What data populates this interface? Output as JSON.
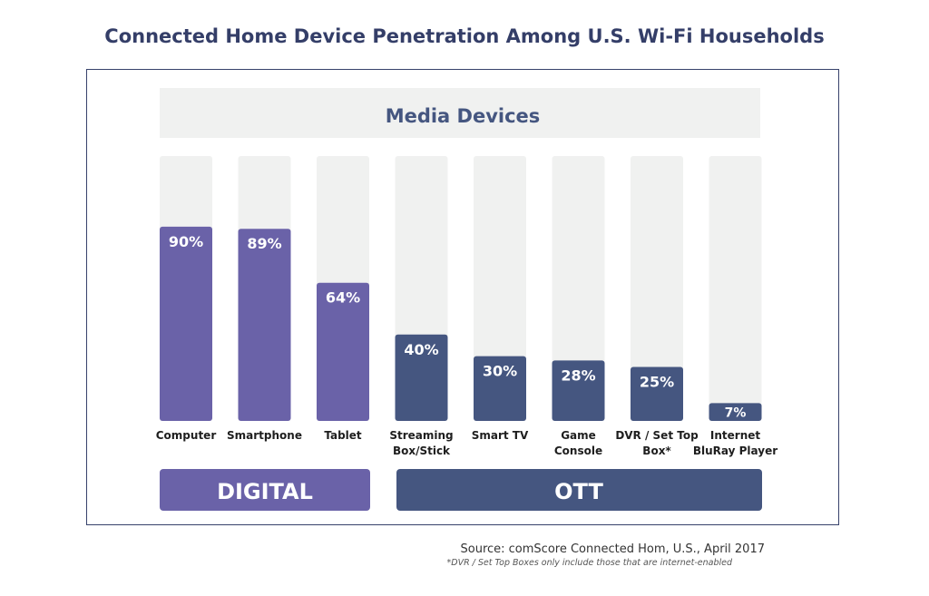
{
  "title": "Connected Home Device Penetration Among U.S. Wi-Fi Households",
  "colors": {
    "title": "#343e68",
    "track": "#f0f1f0",
    "digital": "#6a62a8",
    "ott": "#455680",
    "white": "#ffffff",
    "label": "#1e1e1e"
  },
  "chart_data": {
    "type": "bar",
    "title": "Media Devices",
    "categories": [
      "Computer",
      "Smartphone",
      "Tablet",
      "Streaming Box/Stick",
      "Smart TV",
      "Game Console",
      "DVR / Set Top Box*",
      "Internet BluRay Player"
    ],
    "category_lines": [
      [
        "Computer"
      ],
      [
        "Smartphone"
      ],
      [
        "Tablet"
      ],
      [
        "Streaming",
        "Box/Stick"
      ],
      [
        "Smart TV"
      ],
      [
        "Game",
        "Console"
      ],
      [
        "DVR / Set Top",
        "Box*"
      ],
      [
        "Internet",
        "BluRay Player"
      ]
    ],
    "values": [
      90,
      89,
      64,
      40,
      30,
      28,
      25,
      7
    ],
    "value_labels": [
      "90%",
      "89%",
      "64%",
      "40%",
      "30%",
      "28%",
      "25%",
      "7%"
    ],
    "groups": [
      "DIGITAL",
      "DIGITAL",
      "DIGITAL",
      "OTT",
      "OTT",
      "OTT",
      "OTT",
      "OTT"
    ],
    "ylim": [
      0,
      100
    ],
    "group_labels": {
      "digital": "DIGITAL",
      "ott": "OTT"
    }
  },
  "source": "Source: comScore Connected Hom, U.S., April 2017",
  "footnote": "*DVR / Set Top Boxes only include those that are internet-enabled"
}
